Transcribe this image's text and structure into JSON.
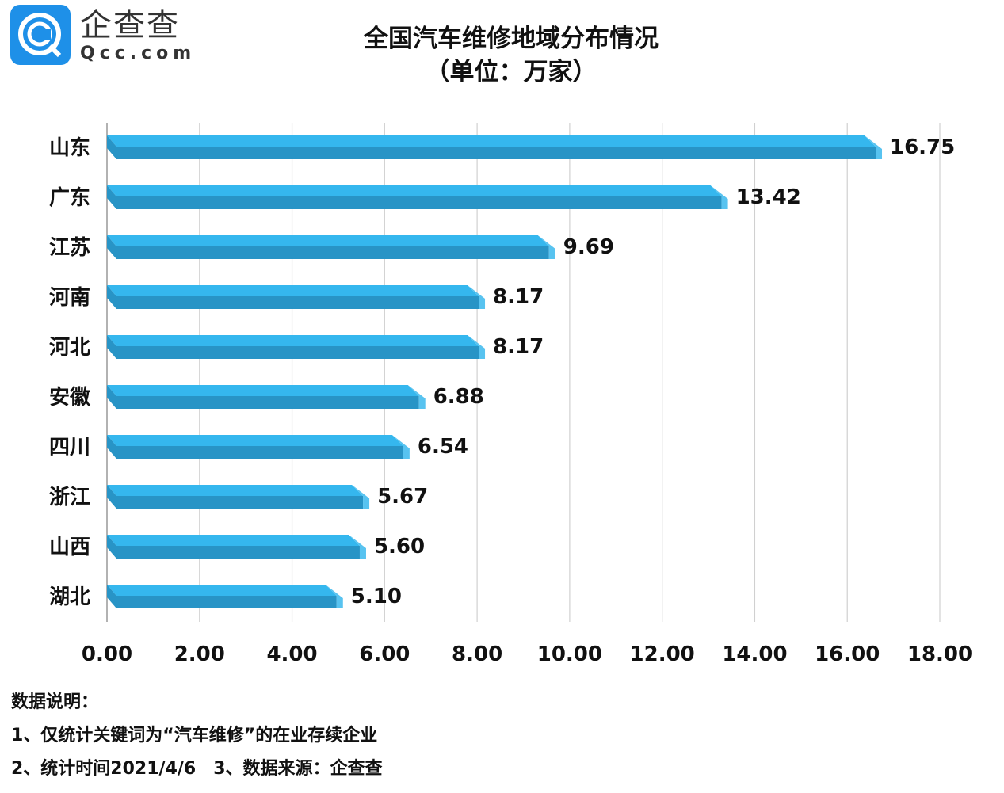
{
  "logo": {
    "cn": "企查查",
    "en": "Qcc.com"
  },
  "chart_data": {
    "type": "bar",
    "orientation": "horizontal",
    "title": "全国汽车维修地域分布情况",
    "subtitle": "（单位：万家）",
    "categories": [
      "山东",
      "广东",
      "江苏",
      "河南",
      "河北",
      "安徽",
      "四川",
      "浙江",
      "山西",
      "湖北"
    ],
    "values": [
      16.75,
      13.42,
      9.69,
      8.17,
      8.17,
      6.88,
      6.54,
      5.67,
      5.6,
      5.1
    ],
    "value_labels": [
      "16.75",
      "13.42",
      "9.69",
      "8.17",
      "8.17",
      "6.88",
      "6.54",
      "5.67",
      "5.60",
      "5.10"
    ],
    "xlim": [
      0,
      18
    ],
    "xticks": [
      "0.00",
      "2.00",
      "4.00",
      "6.00",
      "8.00",
      "10.00",
      "12.00",
      "14.00",
      "16.00",
      "18.00"
    ],
    "grid": true,
    "colors": {
      "top": "#35b7ee",
      "front": "#2894c6",
      "end": "#58c3f0"
    }
  },
  "notes": {
    "heading": "数据说明：",
    "line1": "1、仅统计关键词为“汽车维修”的在业存续企业",
    "line2": "2、统计时间2021/4/6　3、数据来源：企查查"
  }
}
